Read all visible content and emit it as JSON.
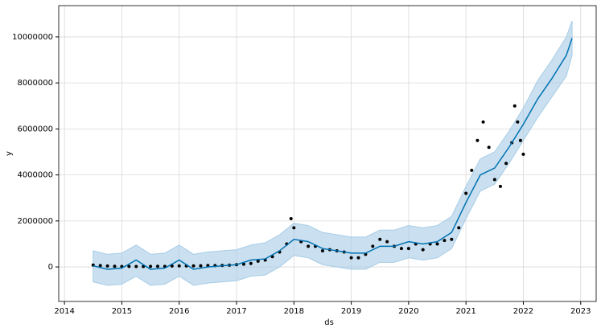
{
  "chart_data": {
    "type": "forecast",
    "x_label": "ds",
    "y_label": "y",
    "xlim": [
      2013.9,
      2023.27
    ],
    "ylim": [
      -1500000,
      11360000
    ],
    "xticks": [
      2014,
      2015,
      2016,
      2017,
      2018,
      2019,
      2020,
      2021,
      2022,
      2023
    ],
    "yticks": [
      0,
      2000000,
      4000000,
      6000000,
      8000000,
      10000000
    ],
    "grid": true,
    "point_color": "#000000",
    "x": [
      2014.5,
      2014.625,
      2014.75,
      2014.875,
      2015.0,
      2015.125,
      2015.25,
      2015.375,
      2015.5,
      2015.625,
      2015.75,
      2015.875,
      2016.0,
      2016.125,
      2016.25,
      2016.375,
      2016.5,
      2016.625,
      2016.75,
      2016.875,
      2017.0,
      2017.125,
      2017.25,
      2017.375,
      2017.5,
      2017.625,
      2017.75,
      2017.875,
      2017.95,
      2018.0,
      2018.125,
      2018.25,
      2018.375,
      2018.5,
      2018.625,
      2018.75,
      2018.875,
      2019.0,
      2019.125,
      2019.25,
      2019.375,
      2019.5,
      2019.625,
      2019.75,
      2019.875,
      2020.0,
      2020.125,
      2020.25,
      2020.375,
      2020.5,
      2020.625,
      2020.75,
      2020.875,
      2021.0,
      2021.1,
      2021.2,
      2021.3,
      2021.4,
      2021.5,
      2021.6,
      2021.7,
      2021.8,
      2021.85,
      2021.9,
      2021.95,
      2022.0
    ],
    "values": [
      80000,
      60000,
      40000,
      30000,
      20000,
      25000,
      20000,
      20000,
      25000,
      30000,
      25000,
      40000,
      45000,
      45000,
      45000,
      50000,
      65000,
      60000,
      65000,
      75000,
      100000,
      120000,
      150000,
      250000,
      300000,
      450000,
      650000,
      1000000,
      2100000,
      1700000,
      1100000,
      900000,
      900000,
      700000,
      750000,
      700000,
      650000,
      400000,
      400000,
      550000,
      900000,
      1200000,
      1100000,
      900000,
      800000,
      800000,
      1000000,
      750000,
      1000000,
      1000000,
      1150000,
      1200000,
      1700000,
      3200000,
      4200000,
      5500000,
      6300000,
      5200000,
      3800000,
      3500000,
      4500000,
      5400000,
      7000000,
      6300000,
      5500000,
      4900000
    ],
    "forecast": {
      "color": "#0072b2",
      "band_color": "#a6cce6",
      "x": [
        2014.5,
        2014.75,
        2015.0,
        2015.25,
        2015.5,
        2015.75,
        2016.0,
        2016.25,
        2016.5,
        2016.75,
        2017.0,
        2017.25,
        2017.5,
        2017.75,
        2018.0,
        2018.25,
        2018.5,
        2018.75,
        2019.0,
        2019.25,
        2019.5,
        2019.75,
        2020.0,
        2020.25,
        2020.5,
        2020.75,
        2021.0,
        2021.25,
        2021.5,
        2021.75,
        2022.0,
        2022.25,
        2022.5,
        2022.75,
        2022.85
      ],
      "values": [
        50000,
        -100000,
        -50000,
        300000,
        -100000,
        -50000,
        300000,
        -100000,
        0,
        50000,
        100000,
        300000,
        350000,
        700000,
        1200000,
        1100000,
        800000,
        700000,
        600000,
        600000,
        900000,
        900000,
        1100000,
        1000000,
        1100000,
        1500000,
        2800000,
        4000000,
        4300000,
        5200000,
        6200000,
        7300000,
        8200000,
        9200000,
        9950000
      ],
      "lower": [
        -650000,
        -800000,
        -750000,
        -400000,
        -800000,
        -750000,
        -400000,
        -800000,
        -700000,
        -650000,
        -600000,
        -400000,
        -350000,
        0,
        500000,
        400000,
        100000,
        0,
        -100000,
        -100000,
        200000,
        200000,
        400000,
        300000,
        400000,
        800000,
        2100000,
        3300000,
        3600000,
        4500000,
        5500000,
        6500000,
        7400000,
        8300000,
        9200000
      ],
      "upper": [
        700000,
        550000,
        600000,
        950000,
        550000,
        600000,
        950000,
        550000,
        650000,
        700000,
        750000,
        950000,
        1050000,
        1400000,
        1900000,
        1800000,
        1500000,
        1400000,
        1300000,
        1300000,
        1600000,
        1600000,
        1800000,
        1700000,
        1800000,
        2200000,
        3500000,
        4700000,
        5000000,
        5900000,
        6900000,
        8100000,
        9000000,
        10000000,
        10700000
      ]
    }
  }
}
